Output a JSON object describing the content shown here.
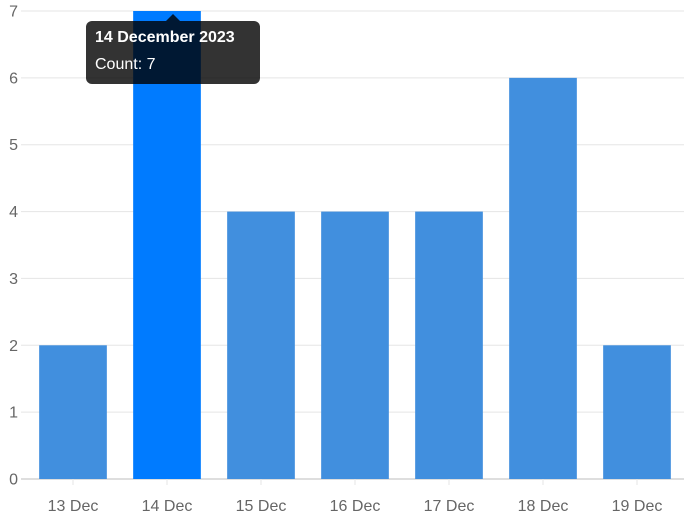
{
  "chart_data": {
    "type": "bar",
    "categories": [
      "13 Dec",
      "14 Dec",
      "15 Dec",
      "16 Dec",
      "17 Dec",
      "18 Dec",
      "19 Dec"
    ],
    "values": [
      2,
      7,
      4,
      4,
      4,
      6,
      2
    ],
    "ylim": [
      0,
      7
    ],
    "yticks": [
      "0",
      "1",
      "2",
      "3",
      "4",
      "5",
      "6",
      "7"
    ],
    "grid": true,
    "bar_color": "#418fde",
    "highlight_color": "#007bff",
    "highlight_index": 1
  },
  "tooltip": {
    "title": "14 December 2023",
    "body": "Count: 7"
  }
}
